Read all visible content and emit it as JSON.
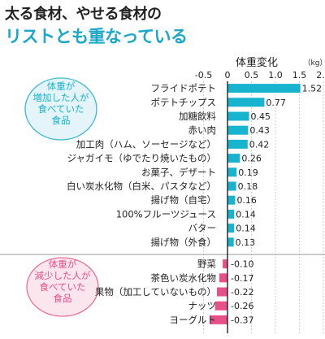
{
  "title_line1": "太る食材、やせる食材の",
  "title_line2": "リストとも重なっている",
  "chart_data": {
    "type": "bar",
    "orientation": "horizontal",
    "axis_title": "体重変化",
    "unit": "（kg）",
    "xlim": [
      -0.5,
      2.0
    ],
    "ticks": [
      "-0.5",
      "0",
      "0.5",
      "1.0",
      "1.5",
      "2.0"
    ],
    "tick_values": [
      -0.5,
      0,
      0.5,
      1.0,
      1.5,
      2.0
    ],
    "groups": [
      {
        "label": "体重が増加した人が食べていた食品",
        "label_lines": [
          "体重が",
          "増加した人が",
          "食べていた",
          "食品"
        ],
        "color": "#18b3cf",
        "border_color": "#3bb8d4",
        "bg_color": "#e4f4f9",
        "items": [
          {
            "category": "フライドポテト",
            "value": 1.52,
            "label": "1.52"
          },
          {
            "category": "ポテトチップス",
            "value": 0.77,
            "label": "0.77"
          },
          {
            "category": "加糖飲料",
            "value": 0.45,
            "label": "0.45"
          },
          {
            "category": "赤い肉",
            "value": 0.43,
            "label": "0.43"
          },
          {
            "category": "加工肉（ハム、ソーセージなど）",
            "value": 0.42,
            "label": "0.42"
          },
          {
            "category": "ジャガイモ（ゆでたり焼いたもの）",
            "value": 0.26,
            "label": "0.26"
          },
          {
            "category": "お菓子、デザート",
            "value": 0.19,
            "label": "0.19"
          },
          {
            "category": "白い炭水化物（白米、パスタなど）",
            "value": 0.18,
            "label": "0.18"
          },
          {
            "category": "揚げ物（自宅）",
            "value": 0.16,
            "label": "0.16"
          },
          {
            "category": "100%フルーツジュース",
            "value": 0.14,
            "label": "0.14"
          },
          {
            "category": "バター",
            "value": 0.14,
            "label": "0.14"
          },
          {
            "category": "揚げ物（外食）",
            "value": 0.13,
            "label": "0.13"
          }
        ]
      },
      {
        "label": "体重が減少した人が食べていた食品",
        "label_lines": [
          "体重が",
          "減少した人が",
          "食べていた",
          "食品"
        ],
        "color": "#e8508a",
        "border_color": "#e8709b",
        "bg_color": "#fbe6ee",
        "items": [
          {
            "category": "野菜",
            "value": -0.1,
            "label": "-0.10"
          },
          {
            "category": "茶色い炭水化物",
            "value": -0.17,
            "label": "-0.17"
          },
          {
            "category": "果物（加工していないもの）",
            "value": -0.22,
            "label": "-0.22"
          },
          {
            "category": "ナッツ",
            "value": -0.26,
            "label": "-0.26"
          },
          {
            "category": "ヨーグルト",
            "value": -0.37,
            "label": "-0.37"
          }
        ]
      }
    ]
  }
}
